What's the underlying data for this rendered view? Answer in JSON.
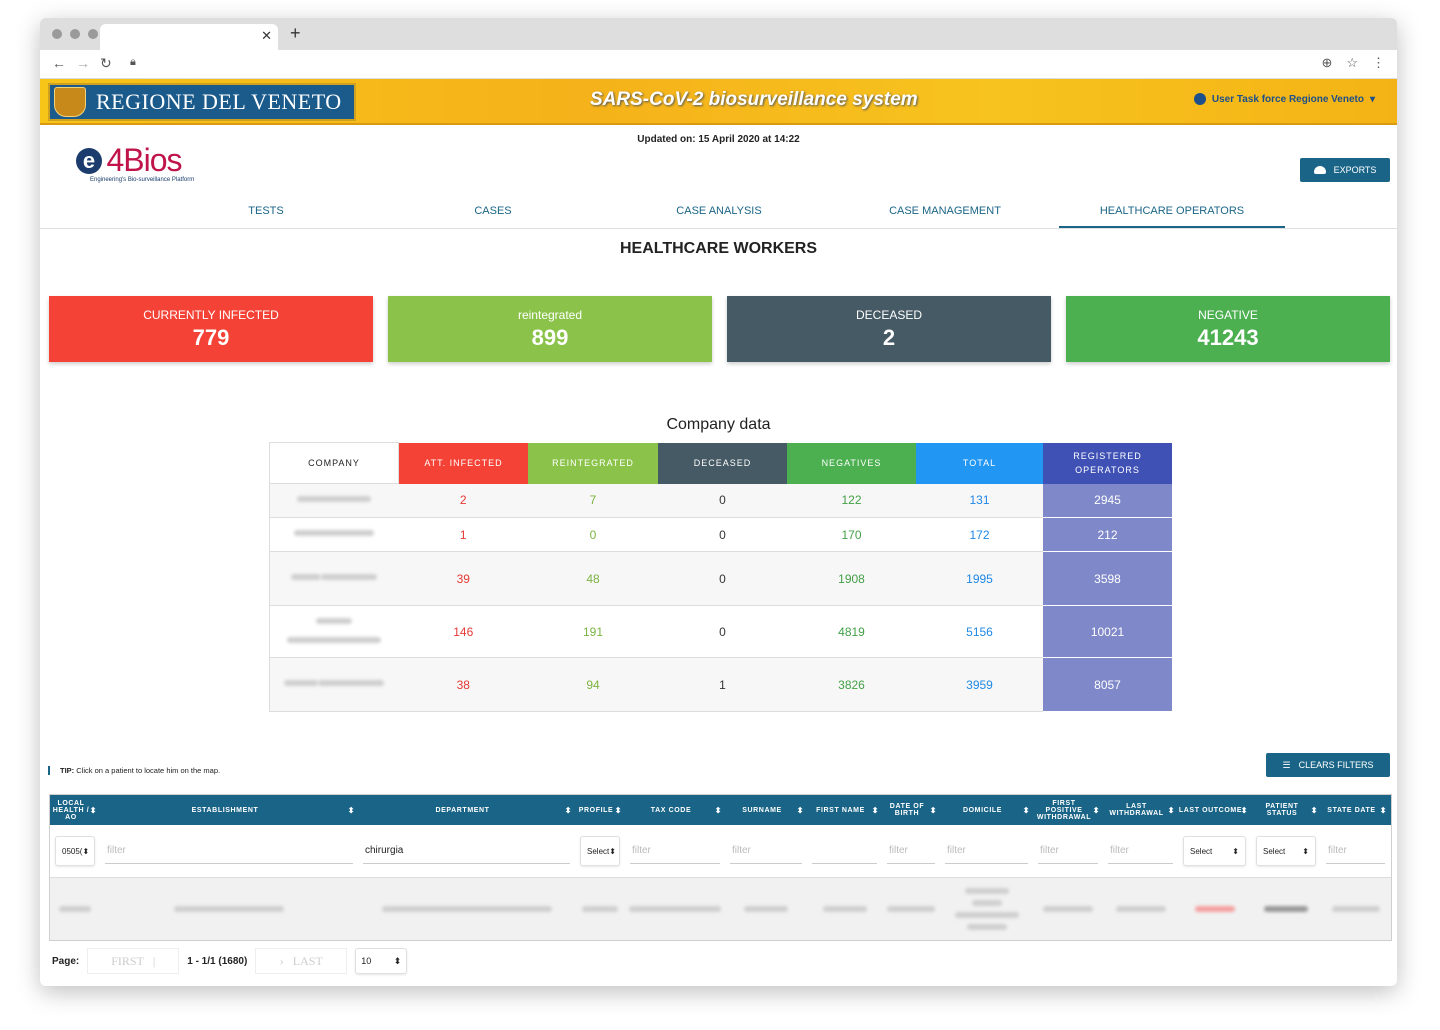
{
  "banner": {
    "region_name": "REGIONE DEL VENETO",
    "system_title": "SARS-CoV-2 biosurveillance system",
    "user_label": "User Task force Regione Veneto"
  },
  "header": {
    "logo_text": "4Bios",
    "logo_mark": "e",
    "logo_subtitle": "Engineering's Bio-surveillance Platform",
    "updated": "Updated on: 15 April 2020 at 14:22",
    "exports_label": "EXPORTS"
  },
  "tabs": [
    {
      "label": "TESTS",
      "active": false
    },
    {
      "label": "CASES",
      "active": false
    },
    {
      "label": "CASE ANALYSIS",
      "active": false
    },
    {
      "label": "CASE MANAGEMENT",
      "active": false
    },
    {
      "label": "HEALTHCARE OPERATORS",
      "active": true
    }
  ],
  "section_title": "HEALTHCARE WORKERS",
  "stats": [
    {
      "label": "CURRENTLY INFECTED",
      "value": "779",
      "color": "#f44336"
    },
    {
      "label": "reintegrated",
      "value": "899",
      "color": "#8bc34a"
    },
    {
      "label": "DECEASED",
      "value": "2",
      "color": "#455a64"
    },
    {
      "label": "NEGATIVE",
      "value": "41243",
      "color": "#4caf50"
    }
  ],
  "company": {
    "title": "Company data",
    "headers": [
      "COMPANY",
      "ATT. INFECTED",
      "REINTEGRATED",
      "DECEASED",
      "NEGATIVES",
      "TOTAL",
      "REGISTERED OPERATORS"
    ],
    "header_colors": [
      "#ffffff",
      "#f44336",
      "#8bc34a",
      "#455a64",
      "#4caf50",
      "#2196f3",
      "#3f51b5"
    ],
    "rows": [
      {
        "infected": "2",
        "reintegrated": "7",
        "deceased": "0",
        "negatives": "122",
        "total": "131",
        "operators": "2945"
      },
      {
        "infected": "1",
        "reintegrated": "0",
        "deceased": "0",
        "negatives": "170",
        "total": "172",
        "operators": "212"
      },
      {
        "infected": "39",
        "reintegrated": "48",
        "deceased": "0",
        "negatives": "1908",
        "total": "1995",
        "operators": "3598"
      },
      {
        "infected": "146",
        "reintegrated": "191",
        "deceased": "0",
        "negatives": "4819",
        "total": "5156",
        "operators": "10021"
      },
      {
        "infected": "38",
        "reintegrated": "94",
        "deceased": "1",
        "negatives": "3826",
        "total": "3959",
        "operators": "8057"
      }
    ]
  },
  "tip": {
    "bold": "TIP:",
    "text": "Click on a patient to locate him on the map."
  },
  "clear_filters_label": "CLEARS FILTERS",
  "patients": {
    "columns": [
      "LOCAL HEALTH / AO",
      "ESTABLISHMENT",
      "DEPARTMENT",
      "PROFILE",
      "TAX CODE",
      "SURNAME",
      "FIRST NAME",
      "DATE OF BIRTH",
      "DOMICILE",
      "FIRST POSITIVE WITHDRAWAL",
      "LAST WITHDRAWAL",
      "LAST OUTCOME",
      "PATIENT STATUS",
      "STATE DATE"
    ],
    "filter_placeholder": "filter",
    "select_label": "Select",
    "local_health_value": "0505(",
    "department_value": "chirurgia"
  },
  "pager": {
    "page_label": "Page:",
    "first": "FIRST",
    "last": "LAST",
    "range": "1 - 1/1 (1680)",
    "rows_per_page": "10"
  },
  "icons": [
    "lock-icon",
    "user-icon",
    "cloud-upload-icon",
    "filter-list-icon",
    "sort-icon"
  ]
}
